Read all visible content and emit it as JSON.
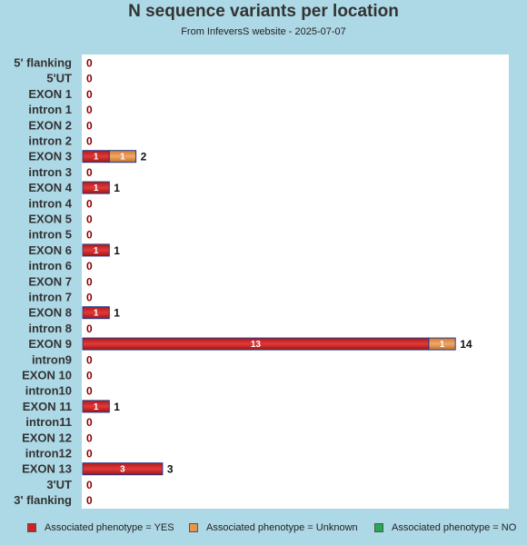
{
  "chart_data": {
    "type": "bar",
    "orientation": "horizontal",
    "stacked": true,
    "title": "N sequence variants per location",
    "subtitle": "From InfeversS website - 2025-07-07",
    "categories": [
      "5' flanking",
      "5'UT",
      "EXON 1",
      "intron 1",
      "EXON 2",
      "intron 2",
      "EXON 3",
      "intron 3",
      "EXON 4",
      "intron 4",
      "EXON 5",
      "intron 5",
      "EXON 6",
      "intron 6",
      "EXON 7",
      "intron 7",
      "EXON 8",
      "intron 8",
      "EXON 9",
      "intron9",
      "EXON 10",
      "intron10",
      "EXON 11",
      "intron11",
      "EXON 12",
      "intron12",
      "EXON 13",
      "3'UT",
      "3' flanking"
    ],
    "series": [
      {
        "name": "Associated phenotype = YES",
        "color": "#cc2222",
        "values": [
          0,
          0,
          0,
          0,
          0,
          0,
          1,
          0,
          1,
          0,
          0,
          0,
          1,
          0,
          0,
          0,
          1,
          0,
          13,
          0,
          0,
          0,
          1,
          0,
          0,
          0,
          3,
          0,
          0
        ]
      },
      {
        "name": "Associated phenotype = Unknown",
        "color": "#e8944a",
        "values": [
          0,
          0,
          0,
          0,
          0,
          0,
          1,
          0,
          0,
          0,
          0,
          0,
          0,
          0,
          0,
          0,
          0,
          0,
          1,
          0,
          0,
          0,
          0,
          0,
          0,
          0,
          0,
          0,
          0
        ]
      },
      {
        "name": "Associated phenotype = NO",
        "color": "#22aa55",
        "values": [
          0,
          0,
          0,
          0,
          0,
          0,
          0,
          0,
          0,
          0,
          0,
          0,
          0,
          0,
          0,
          0,
          0,
          0,
          0,
          0,
          0,
          0,
          0,
          0,
          0,
          0,
          0,
          0,
          0
        ]
      }
    ],
    "totals": [
      0,
      0,
      0,
      0,
      0,
      0,
      2,
      0,
      1,
      0,
      0,
      0,
      1,
      0,
      0,
      0,
      1,
      0,
      14,
      0,
      0,
      0,
      1,
      0,
      0,
      0,
      3,
      0,
      0
    ],
    "xlim": [
      0,
      16
    ],
    "grid": false,
    "legend_position": "bottom"
  }
}
